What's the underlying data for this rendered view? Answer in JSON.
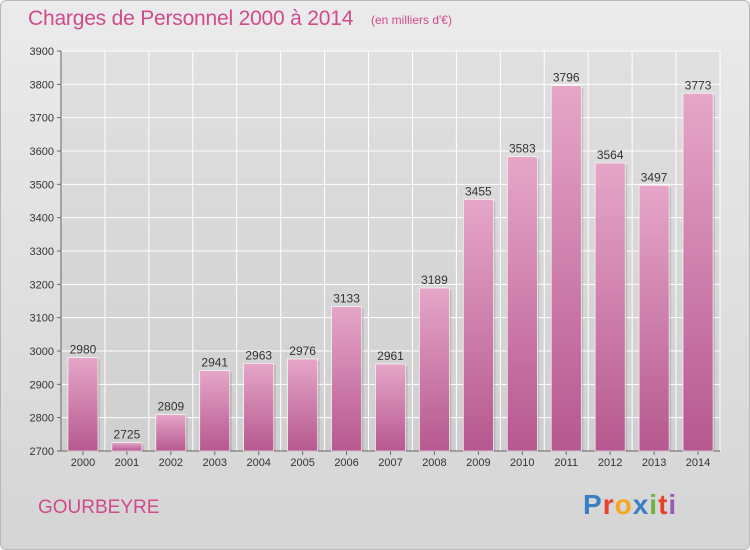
{
  "header": {
    "title": "Charges de Personnel 2000 à 2014",
    "subtitle": "(en milliers d'€)"
  },
  "footer": {
    "city": "GOURBEYRE",
    "logo_text": "Proxiti",
    "logo_colors": [
      "#3a7fc4",
      "#e8412c",
      "#f5a623",
      "#3a7fc4",
      "#6cb33f",
      "#e8412c",
      "#9b59b6"
    ]
  },
  "colors": {
    "accent": "#d04a8c",
    "bar_top": "#e6a6c8",
    "bar_bottom": "#b6588f",
    "grid": "#ffffff"
  },
  "chart_data": {
    "type": "bar",
    "title": "Charges de Personnel 2000 à 2014",
    "subtitle": "(en milliers d'€)",
    "categories": [
      "2000",
      "2001",
      "2002",
      "2003",
      "2004",
      "2005",
      "2006",
      "2007",
      "2008",
      "2009",
      "2010",
      "2011",
      "2012",
      "2013",
      "2014"
    ],
    "values": [
      2980,
      2725,
      2809,
      2941,
      2963,
      2976,
      3133,
      2961,
      3189,
      3455,
      3583,
      3796,
      3564,
      3497,
      3773
    ],
    "ylim": [
      2700,
      3900
    ],
    "yticks": [
      2700,
      2800,
      2900,
      3000,
      3100,
      3200,
      3300,
      3400,
      3500,
      3600,
      3700,
      3800,
      3900
    ],
    "grid": true,
    "data_labels": true
  }
}
